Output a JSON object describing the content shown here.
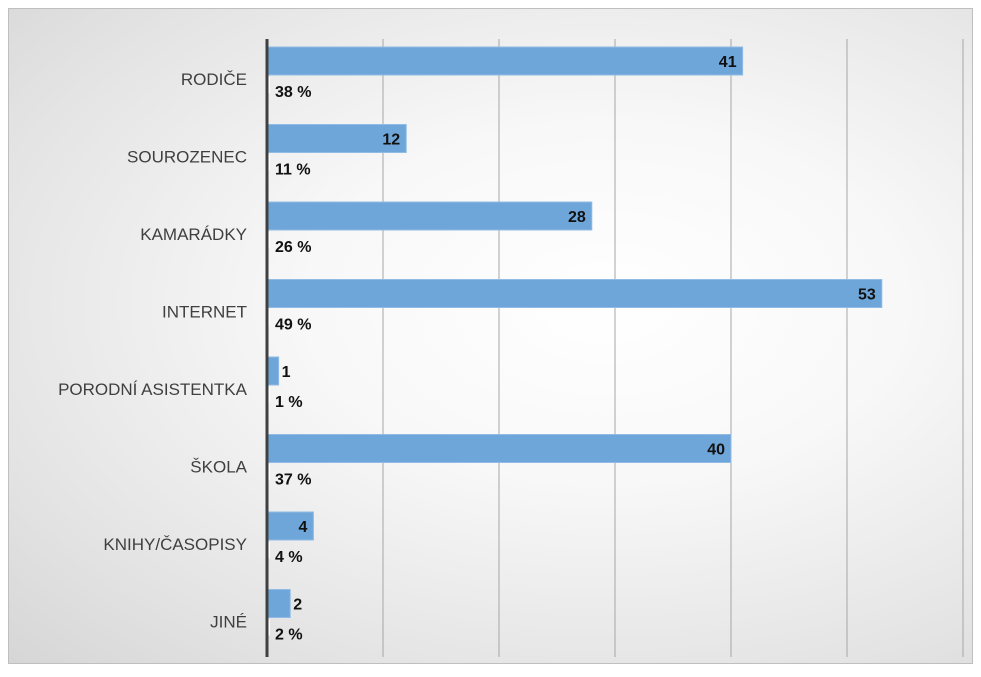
{
  "chart_data": {
    "type": "bar",
    "orientation": "horizontal",
    "categories": [
      "RODIČE",
      "SOUROZENEC",
      "KAMARÁDKY",
      "INTERNET",
      "PORODNÍ ASISTENTKA",
      "ŠKOLA",
      "KNIHY/ČASOPISY",
      "JINÉ"
    ],
    "series": [
      {
        "values": [
          41,
          12,
          28,
          53,
          1,
          40,
          4,
          2
        ],
        "color": "#6fa6d9"
      },
      {
        "values": [
          38,
          11,
          26,
          49,
          1,
          37,
          4,
          2
        ],
        "unit": "%",
        "color": "#ffffff"
      }
    ],
    "percent_labels": [
      "38 %",
      "11 %",
      "26 %",
      "49 %",
      "1 %",
      "37 %",
      "4 %",
      "2 %"
    ],
    "xlim": [
      0,
      60
    ],
    "x_gridlines": [
      10,
      20,
      30,
      40,
      50,
      60
    ],
    "grid": true,
    "legend": "none",
    "title": "",
    "xlabel": "",
    "ylabel": ""
  }
}
